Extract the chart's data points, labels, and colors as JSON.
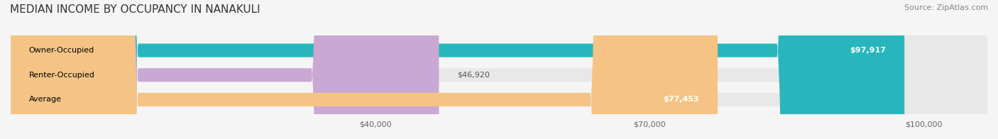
{
  "title": "MEDIAN INCOME BY OCCUPANCY IN NANAKULI",
  "source": "Source: ZipAtlas.com",
  "categories": [
    "Owner-Occupied",
    "Renter-Occupied",
    "Average"
  ],
  "values": [
    97917,
    46920,
    77453
  ],
  "bar_colors": [
    "#29b5be",
    "#c9a8d4",
    "#f5c484"
  ],
  "bar_bg_color": "#e8e8e8",
  "value_labels": [
    "$97,917",
    "$46,920",
    "$77,453"
  ],
  "label_inside": [
    true,
    false,
    true
  ],
  "x_ticks": [
    40000,
    70000,
    100000
  ],
  "x_tick_labels": [
    "$40,000",
    "$70,000",
    "$100,000"
  ],
  "xmin": 0,
  "xmax": 107000,
  "title_fontsize": 11,
  "source_fontsize": 8,
  "label_fontsize": 8,
  "tick_fontsize": 8,
  "background_color": "#f5f5f5"
}
